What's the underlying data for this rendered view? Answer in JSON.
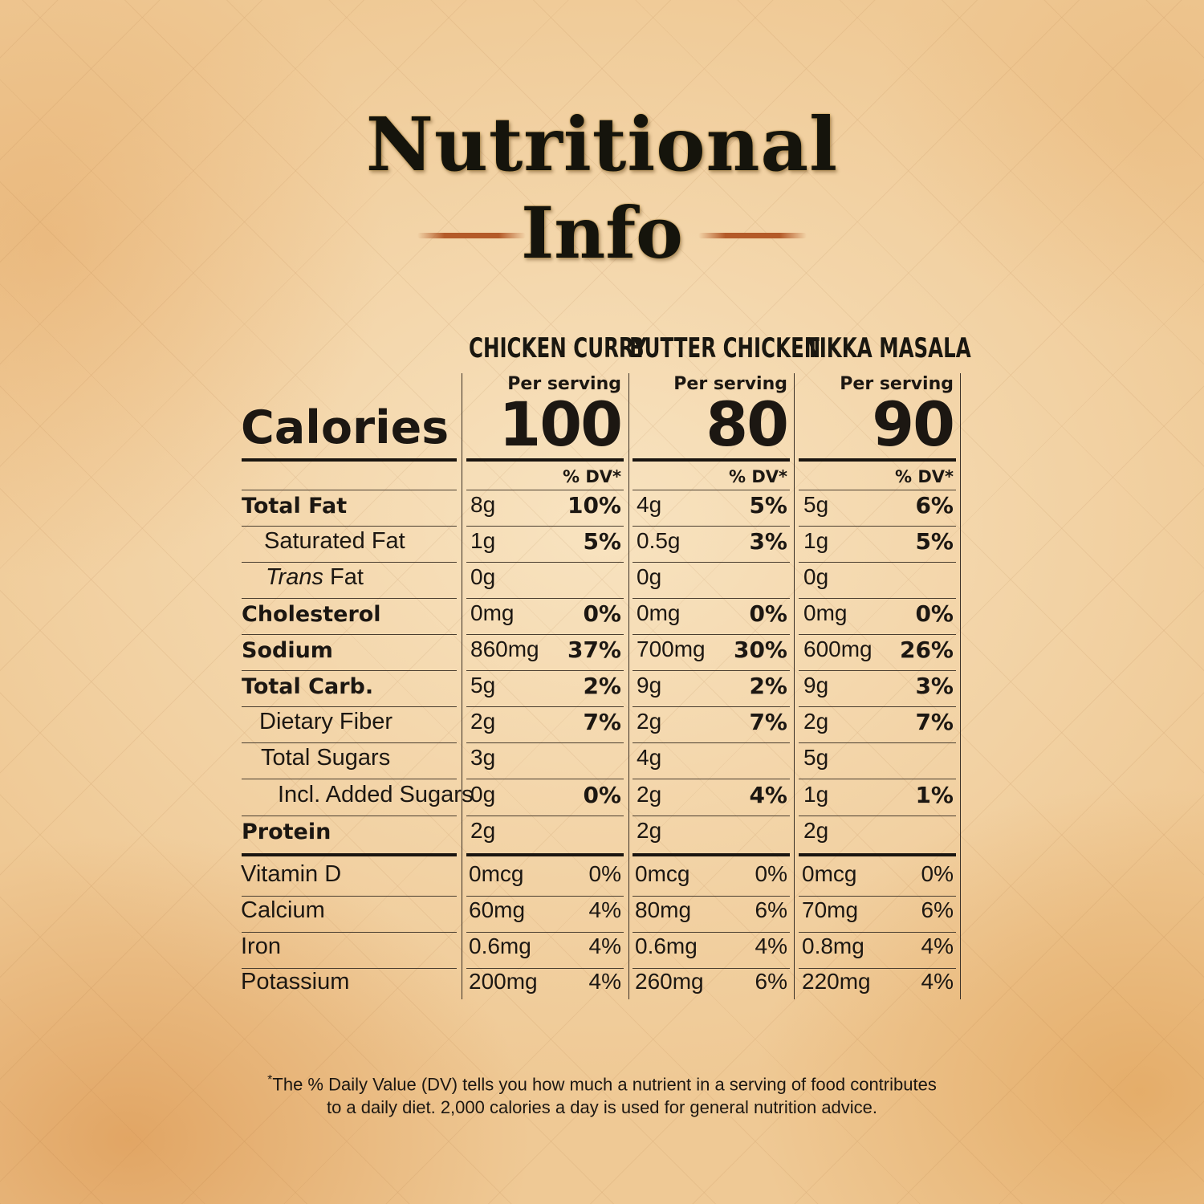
{
  "title": {
    "line1": "Nutritional",
    "line2": "Info"
  },
  "products": [
    "CHICKEN CURRY",
    "BUTTER CHICKEN",
    "TIKKA MASALA"
  ],
  "per_serving": "Per serving",
  "calories_label": "Calories",
  "calories": [
    "100",
    "80",
    "90"
  ],
  "dv_header": "% DV*",
  "nutrients": [
    {
      "label": "Total Fat",
      "vals": [
        "8g",
        "4g",
        "5g"
      ],
      "pcts": [
        "10%",
        "5%",
        "6%"
      ]
    },
    {
      "label": "Saturated Fat",
      "vals": [
        "1g",
        "0.5g",
        "1g"
      ],
      "pcts": [
        "5%",
        "3%",
        "5%"
      ]
    },
    {
      "label_italic": "Trans",
      "label_rest": " Fat",
      "vals": [
        "0g",
        "0g",
        "0g"
      ],
      "pcts": [
        "",
        "",
        ""
      ]
    },
    {
      "label": "Cholesterol",
      "vals": [
        "0mg",
        "0mg",
        "0mg"
      ],
      "pcts": [
        "0%",
        "0%",
        "0%"
      ]
    },
    {
      "label": "Sodium",
      "vals": [
        "860mg",
        "700mg",
        "600mg"
      ],
      "pcts": [
        "37%",
        "30%",
        "26%"
      ]
    },
    {
      "label": "Total Carb.",
      "vals": [
        "5g",
        "9g",
        "9g"
      ],
      "pcts": [
        "2%",
        "2%",
        "3%"
      ]
    },
    {
      "label": "Dietary Fiber",
      "vals": [
        "2g",
        "2g",
        "2g"
      ],
      "pcts": [
        "7%",
        "7%",
        "7%"
      ]
    },
    {
      "label": "Total Sugars",
      "vals": [
        "3g",
        "4g",
        "5g"
      ],
      "pcts": [
        "",
        "",
        ""
      ]
    },
    {
      "label": "Incl. Added Sugars",
      "vals": [
        "0g",
        "2g",
        "1g"
      ],
      "pcts": [
        "0%",
        "4%",
        "1%"
      ]
    },
    {
      "label": "Protein",
      "vals": [
        "2g",
        "2g",
        "2g"
      ],
      "pcts": [
        "",
        "",
        ""
      ]
    }
  ],
  "vitamins": [
    {
      "label": "Vitamin D",
      "vals": [
        "0mcg",
        "0mcg",
        "0mcg"
      ],
      "pcts": [
        "0%",
        "0%",
        "0%"
      ]
    },
    {
      "label": "Calcium",
      "vals": [
        "60mg",
        "80mg",
        "70mg"
      ],
      "pcts": [
        "4%",
        "6%",
        "6%"
      ]
    },
    {
      "label": "Iron",
      "vals": [
        "0.6mg",
        "0.6mg",
        "0.8mg"
      ],
      "pcts": [
        "4%",
        "4%",
        "4%"
      ]
    },
    {
      "label": "Potassium",
      "vals": [
        "200mg",
        "260mg",
        "220mg"
      ],
      "pcts": [
        "4%",
        "6%",
        "4%"
      ]
    }
  ],
  "footnote": {
    "star": "*",
    "line1": "The % Daily Value (DV) tells you how much a nutrient in a serving of food contributes",
    "line2": "to a daily diet. 2,000 calories a day is used for general nutrition advice."
  }
}
